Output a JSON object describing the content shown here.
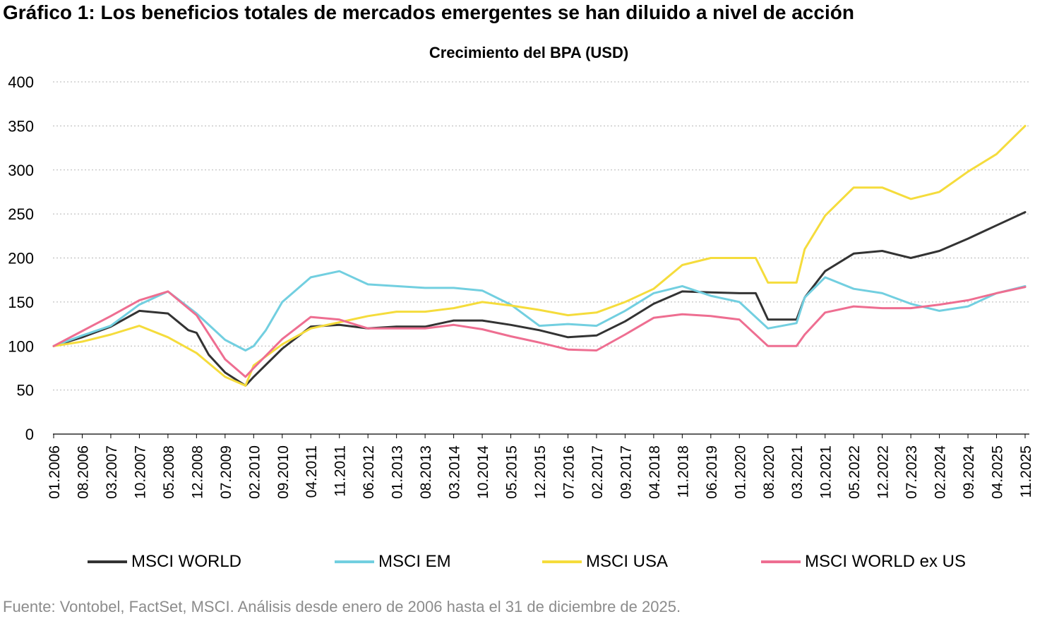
{
  "header": {
    "title": "Gráfico 1: Los beneficios totales de mercados emergentes se han diluido a nivel de acción"
  },
  "footer": {
    "source": "Fuente: Vontobel, FactSet, MSCI. Análisis desde enero de 2006 hasta el 31 de diciembre de 2025."
  },
  "chart_data": {
    "type": "line",
    "title": "Crecimiento del BPA (USD)",
    "xlabel": "",
    "ylabel": "",
    "ylim": [
      0,
      400
    ],
    "yticks": [
      0,
      50,
      100,
      150,
      200,
      250,
      300,
      350,
      400
    ],
    "grid": true,
    "legend_position": "bottom",
    "x_start": "01.2006",
    "x_end": "11.2025",
    "x_tick_labels": [
      "01.2006",
      "08.2006",
      "03.2007",
      "10.2007",
      "05.2008",
      "12.2008",
      "07.2009",
      "02.2010",
      "09.2010",
      "04.2011",
      "11.2011",
      "06.2012",
      "01.2013",
      "08.2013",
      "03.2014",
      "10.2014",
      "05.2015",
      "12.2015",
      "07.2016",
      "02.2017",
      "09.2017",
      "04.2018",
      "11.2018",
      "06.2019",
      "01.2020",
      "08.2020",
      "03.2021",
      "10.2021",
      "05.2022",
      "12.2022",
      "07.2023",
      "02.2024",
      "09.2024",
      "04.2025",
      "11.2025"
    ],
    "series": [
      {
        "name": "MSCI WORLD",
        "color": "#333333",
        "points": [
          [
            "01.2006",
            100
          ],
          [
            "08.2006",
            110
          ],
          [
            "03.2007",
            122
          ],
          [
            "10.2007",
            140
          ],
          [
            "05.2008",
            137
          ],
          [
            "10.2008",
            118
          ],
          [
            "12.2008",
            115
          ],
          [
            "03.2009",
            90
          ],
          [
            "07.2009",
            70
          ],
          [
            "12.2009",
            55
          ],
          [
            "02.2010",
            65
          ],
          [
            "09.2010",
            97
          ],
          [
            "04.2011",
            122
          ],
          [
            "11.2011",
            124
          ],
          [
            "06.2012",
            120
          ],
          [
            "01.2013",
            122
          ],
          [
            "08.2013",
            122
          ],
          [
            "03.2014",
            129
          ],
          [
            "10.2014",
            129
          ],
          [
            "05.2015",
            124
          ],
          [
            "12.2015",
            118
          ],
          [
            "07.2016",
            110
          ],
          [
            "02.2017",
            112
          ],
          [
            "09.2017",
            128
          ],
          [
            "04.2018",
            148
          ],
          [
            "11.2018",
            162
          ],
          [
            "06.2019",
            161
          ],
          [
            "01.2020",
            160
          ],
          [
            "05.2020",
            160
          ],
          [
            "08.2020",
            130
          ],
          [
            "03.2021",
            130
          ],
          [
            "05.2021",
            155
          ],
          [
            "10.2021",
            185
          ],
          [
            "05.2022",
            205
          ],
          [
            "12.2022",
            208
          ],
          [
            "07.2023",
            200
          ],
          [
            "02.2024",
            208
          ],
          [
            "09.2024",
            222
          ],
          [
            "04.2025",
            237
          ],
          [
            "11.2025",
            252
          ]
        ]
      },
      {
        "name": "MSCI EM",
        "color": "#72cfe0",
        "points": [
          [
            "01.2006",
            100
          ],
          [
            "08.2006",
            112
          ],
          [
            "03.2007",
            123
          ],
          [
            "10.2007",
            147
          ],
          [
            "05.2008",
            162
          ],
          [
            "12.2008",
            137
          ],
          [
            "07.2009",
            107
          ],
          [
            "12.2009",
            95
          ],
          [
            "02.2010",
            100
          ],
          [
            "05.2010",
            118
          ],
          [
            "09.2010",
            150
          ],
          [
            "04.2011",
            178
          ],
          [
            "11.2011",
            185
          ],
          [
            "06.2012",
            170
          ],
          [
            "01.2013",
            168
          ],
          [
            "08.2013",
            166
          ],
          [
            "03.2014",
            166
          ],
          [
            "10.2014",
            163
          ],
          [
            "05.2015",
            147
          ],
          [
            "12.2015",
            123
          ],
          [
            "07.2016",
            125
          ],
          [
            "02.2017",
            123
          ],
          [
            "09.2017",
            140
          ],
          [
            "04.2018",
            160
          ],
          [
            "11.2018",
            168
          ],
          [
            "06.2019",
            157
          ],
          [
            "01.2020",
            150
          ],
          [
            "08.2020",
            120
          ],
          [
            "03.2021",
            126
          ],
          [
            "05.2021",
            155
          ],
          [
            "10.2021",
            178
          ],
          [
            "05.2022",
            165
          ],
          [
            "12.2022",
            160
          ],
          [
            "07.2023",
            148
          ],
          [
            "02.2024",
            140
          ],
          [
            "09.2024",
            145
          ],
          [
            "04.2025",
            160
          ],
          [
            "11.2025",
            168
          ]
        ]
      },
      {
        "name": "MSCI USA",
        "color": "#f5dc3c",
        "points": [
          [
            "01.2006",
            100
          ],
          [
            "08.2006",
            105
          ],
          [
            "03.2007",
            113
          ],
          [
            "10.2007",
            123
          ],
          [
            "05.2008",
            110
          ],
          [
            "12.2008",
            92
          ],
          [
            "07.2009",
            65
          ],
          [
            "12.2009",
            55
          ],
          [
            "02.2010",
            78
          ],
          [
            "09.2010",
            102
          ],
          [
            "04.2011",
            120
          ],
          [
            "11.2011",
            127
          ],
          [
            "06.2012",
            134
          ],
          [
            "01.2013",
            139
          ],
          [
            "08.2013",
            139
          ],
          [
            "03.2014",
            143
          ],
          [
            "10.2014",
            150
          ],
          [
            "05.2015",
            146
          ],
          [
            "12.2015",
            141
          ],
          [
            "07.2016",
            135
          ],
          [
            "02.2017",
            138
          ],
          [
            "09.2017",
            150
          ],
          [
            "04.2018",
            165
          ],
          [
            "11.2018",
            192
          ],
          [
            "06.2019",
            200
          ],
          [
            "01.2020",
            200
          ],
          [
            "05.2020",
            200
          ],
          [
            "08.2020",
            172
          ],
          [
            "03.2021",
            172
          ],
          [
            "05.2021",
            210
          ],
          [
            "10.2021",
            248
          ],
          [
            "05.2022",
            280
          ],
          [
            "12.2022",
            280
          ],
          [
            "07.2023",
            267
          ],
          [
            "02.2024",
            275
          ],
          [
            "09.2024",
            298
          ],
          [
            "04.2025",
            318
          ],
          [
            "11.2025",
            350
          ]
        ]
      },
      {
        "name": "MSCI WORLD ex US",
        "color": "#ee6e91",
        "points": [
          [
            "01.2006",
            100
          ],
          [
            "08.2006",
            117
          ],
          [
            "03.2007",
            134
          ],
          [
            "10.2007",
            152
          ],
          [
            "05.2008",
            162
          ],
          [
            "12.2008",
            135
          ],
          [
            "07.2009",
            85
          ],
          [
            "12.2009",
            65
          ],
          [
            "02.2010",
            75
          ],
          [
            "09.2010",
            108
          ],
          [
            "04.2011",
            133
          ],
          [
            "11.2011",
            130
          ],
          [
            "06.2012",
            120
          ],
          [
            "01.2013",
            120
          ],
          [
            "08.2013",
            120
          ],
          [
            "03.2014",
            124
          ],
          [
            "10.2014",
            119
          ],
          [
            "05.2015",
            111
          ],
          [
            "12.2015",
            104
          ],
          [
            "07.2016",
            96
          ],
          [
            "02.2017",
            95
          ],
          [
            "09.2017",
            113
          ],
          [
            "04.2018",
            132
          ],
          [
            "11.2018",
            136
          ],
          [
            "06.2019",
            134
          ],
          [
            "01.2020",
            130
          ],
          [
            "08.2020",
            100
          ],
          [
            "03.2021",
            100
          ],
          [
            "05.2021",
            113
          ],
          [
            "10.2021",
            138
          ],
          [
            "05.2022",
            145
          ],
          [
            "12.2022",
            143
          ],
          [
            "07.2023",
            143
          ],
          [
            "02.2024",
            147
          ],
          [
            "09.2024",
            152
          ],
          [
            "04.2025",
            160
          ],
          [
            "11.2025",
            167
          ]
        ]
      }
    ]
  }
}
